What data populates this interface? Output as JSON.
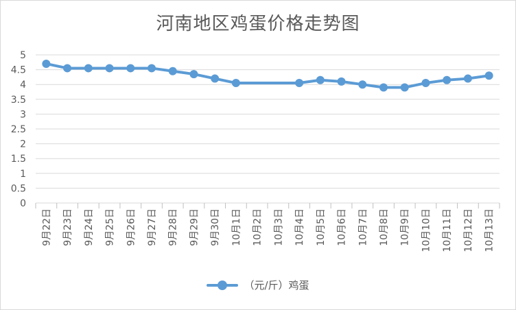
{
  "chart_data": {
    "type": "line",
    "title": "河南地区鸡蛋价格走势图",
    "categories": [
      "9月22日",
      "9月23日",
      "9月24日",
      "9月25日",
      "9月26日",
      "9月27日",
      "9月28日",
      "9月29日",
      "9月30日",
      "10月1日",
      "10月2日",
      "10月3日",
      "10月4日",
      "10月5日",
      "10月6日",
      "10月7日",
      "10月8日",
      "10月9日",
      "10月10日",
      "10月11日",
      "10月12日",
      "10月13日"
    ],
    "series": [
      {
        "name": "（元/斤）鸡蛋",
        "values": [
          4.7,
          4.55,
          4.55,
          4.55,
          4.55,
          4.55,
          4.45,
          4.35,
          4.2,
          4.05,
          null,
          null,
          4.05,
          4.15,
          4.1,
          4.0,
          3.9,
          3.9,
          4.05,
          4.15,
          4.2,
          4.3
        ],
        "color": "#5b9bd5"
      }
    ],
    "yticks": [
      "0",
      "0.5",
      "1",
      "1.5",
      "2",
      "2.5",
      "3",
      "3.5",
      "4",
      "4.5",
      "5"
    ],
    "ylim": [
      0,
      5
    ],
    "grid": true,
    "legend": "bottom"
  }
}
